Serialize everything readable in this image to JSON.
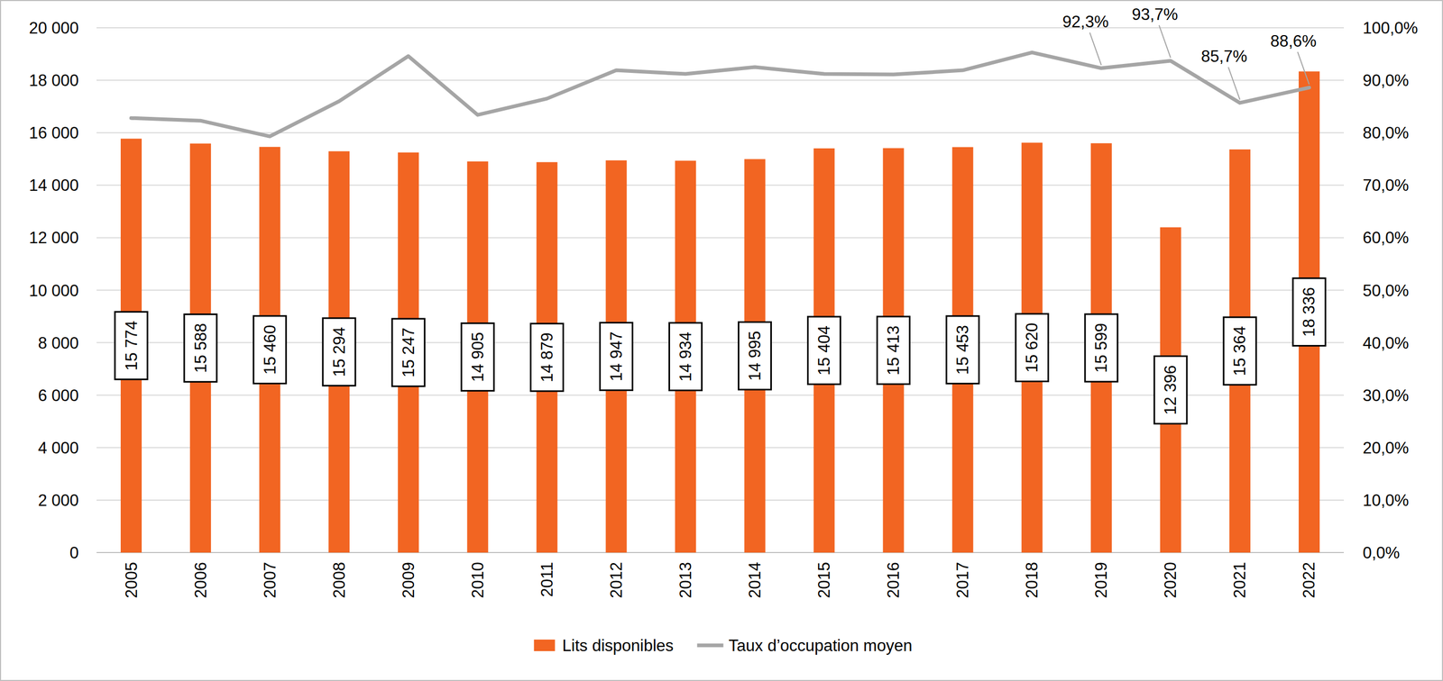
{
  "chart_data": {
    "type": "bar",
    "categories": [
      "2005",
      "2006",
      "2007",
      "2008",
      "2009",
      "2010",
      "2011",
      "2012",
      "2013",
      "2014",
      "2015",
      "2016",
      "2017",
      "2018",
      "2019",
      "2020",
      "2021",
      "2022"
    ],
    "series": [
      {
        "name": "Lits disponibles",
        "type": "bar",
        "color": "#f26522",
        "values": [
          15774,
          15588,
          15460,
          15294,
          15247,
          14905,
          14879,
          14947,
          14934,
          14995,
          15404,
          15413,
          15453,
          15620,
          15599,
          12396,
          15364,
          18336
        ],
        "value_labels": [
          "15 774",
          "15 588",
          "15 460",
          "15 294",
          "15 247",
          "14 905",
          "14 879",
          "14 947",
          "14 934",
          "14 995",
          "15 404",
          "15 413",
          "15 453",
          "15 620",
          "15 599",
          "12 396",
          "15 364",
          "18 336"
        ]
      },
      {
        "name": "Taux d’occupation moyen",
        "type": "line",
        "color": "#a5a5a5",
        "axis": "y2",
        "values": [
          82.8,
          82.3,
          79.3,
          86.0,
          94.6,
          83.4,
          86.5,
          91.9,
          91.2,
          92.5,
          91.2,
          91.1,
          91.9,
          95.3,
          92.3,
          93.7,
          85.7,
          88.6
        ],
        "value_labels": [
          null,
          null,
          null,
          null,
          null,
          null,
          null,
          null,
          null,
          null,
          null,
          null,
          null,
          null,
          "92,3%",
          "93,7%",
          "85,7%",
          "88,6%"
        ]
      }
    ],
    "ylim": [
      0,
      20000
    ],
    "yticks": [
      {
        "value": 0,
        "label": "0"
      },
      {
        "value": 2000,
        "label": "2 000"
      },
      {
        "value": 4000,
        "label": "4 000"
      },
      {
        "value": 6000,
        "label": "6 000"
      },
      {
        "value": 8000,
        "label": "8 000"
      },
      {
        "value": 10000,
        "label": "10 000"
      },
      {
        "value": 12000,
        "label": "12 000"
      },
      {
        "value": 14000,
        "label": "14 000"
      },
      {
        "value": 16000,
        "label": "16 000"
      },
      {
        "value": 18000,
        "label": "18 000"
      },
      {
        "value": 20000,
        "label": "20 000"
      }
    ],
    "y2lim": [
      0,
      100
    ],
    "y2ticks": [
      {
        "value": 0,
        "label": "0,0%"
      },
      {
        "value": 10,
        "label": "10,0%"
      },
      {
        "value": 20,
        "label": "20,0%"
      },
      {
        "value": 30,
        "label": "30,0%"
      },
      {
        "value": 40,
        "label": "40,0%"
      },
      {
        "value": 50,
        "label": "50,0%"
      },
      {
        "value": 60,
        "label": "60,0%"
      },
      {
        "value": 70,
        "label": "70,0%"
      },
      {
        "value": 80,
        "label": "80,0%"
      },
      {
        "value": 90,
        "label": "90,0%"
      },
      {
        "value": 100,
        "label": "100,0%"
      }
    ],
    "grid": true,
    "legend": "bottom",
    "data_labels": true
  }
}
